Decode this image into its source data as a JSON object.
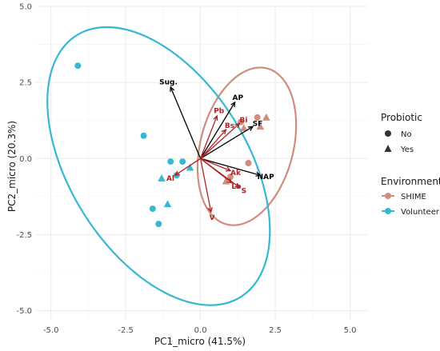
{
  "chart_data": {
    "type": "scatter",
    "xlabel": "PC1_micro (41.5%)",
    "ylabel": "PC2_micro (20.3%)",
    "xlim": [
      -5.5,
      5.6
    ],
    "ylim": [
      -5.3,
      5.0
    ],
    "x_ticks": [
      "-5.0",
      "-2.5",
      "0.0",
      "2.5",
      "5.0"
    ],
    "y_ticks": [
      "-5.0",
      "-2.5",
      "0.0",
      "2.5",
      "5.0"
    ],
    "grid": true,
    "legend_position": "right",
    "colors": {
      "SHIME": "#d08c7c",
      "Volunteer": "#36b7d2",
      "loading_black": "#000000",
      "loading_red": "#b22222"
    },
    "legend": {
      "probiotic_title": "Probiotic",
      "probiotic_items": [
        {
          "label": "No",
          "shape": "circle"
        },
        {
          "label": "Yes",
          "shape": "triangle"
        }
      ],
      "environment_title": "Environment",
      "environment_items": [
        {
          "label": "SHIME",
          "color": "#d08c7c"
        },
        {
          "label": "Volunteer",
          "color": "#36b7d2"
        }
      ]
    },
    "series": [
      {
        "name": "SHIME",
        "points": [
          {
            "x": 1.9,
            "y": 1.35,
            "probiotic": "No"
          },
          {
            "x": 1.35,
            "y": 1.2,
            "probiotic": "No"
          },
          {
            "x": 2.2,
            "y": 1.35,
            "probiotic": "Yes"
          },
          {
            "x": 2.0,
            "y": 1.05,
            "probiotic": "Yes"
          },
          {
            "x": 1.45,
            "y": 1.0,
            "probiotic": "Yes"
          },
          {
            "x": 1.6,
            "y": -0.15,
            "probiotic": "No"
          },
          {
            "x": 0.85,
            "y": -0.75,
            "probiotic": "Yes"
          },
          {
            "x": 1.0,
            "y": -0.6,
            "probiotic": "No"
          }
        ],
        "ellipse": {
          "cx": 1.55,
          "cy": 0.4,
          "rx": 2.65,
          "ry": 1.55,
          "angle_deg": 75
        }
      },
      {
        "name": "Volunteer",
        "points": [
          {
            "x": -4.1,
            "y": 3.05,
            "probiotic": "No"
          },
          {
            "x": -1.9,
            "y": 0.75,
            "probiotic": "No"
          },
          {
            "x": -1.0,
            "y": -0.1,
            "probiotic": "No"
          },
          {
            "x": -0.6,
            "y": -0.1,
            "probiotic": "No"
          },
          {
            "x": -0.35,
            "y": -0.3,
            "probiotic": "Yes"
          },
          {
            "x": -0.8,
            "y": -0.55,
            "probiotic": "No"
          },
          {
            "x": -1.3,
            "y": -0.65,
            "probiotic": "Yes"
          },
          {
            "x": -1.6,
            "y": -1.65,
            "probiotic": "No"
          },
          {
            "x": -1.1,
            "y": -1.5,
            "probiotic": "Yes"
          },
          {
            "x": -1.4,
            "y": -2.15,
            "probiotic": "No"
          }
        ],
        "ellipse": {
          "cx": -1.4,
          "cy": -0.25,
          "rx": 5.1,
          "ry": 2.95,
          "angle_deg": -57
        }
      }
    ],
    "loadings": [
      {
        "label": "Sug.",
        "x": -1.0,
        "y": 2.35,
        "color": "black"
      },
      {
        "label": "AP",
        "x": 1.15,
        "y": 1.85,
        "color": "black"
      },
      {
        "label": "SF",
        "x": 1.75,
        "y": 1.05,
        "color": "black"
      },
      {
        "label": "NAP",
        "x": 2.0,
        "y": -0.55,
        "color": "black"
      },
      {
        "label": "Pb",
        "x": 0.55,
        "y": 1.4,
        "color": "red"
      },
      {
        "label": "Bs",
        "x": 0.85,
        "y": 0.95,
        "color": "red"
      },
      {
        "label": "Bi",
        "x": 1.3,
        "y": 1.15,
        "color": "red"
      },
      {
        "label": "Ak",
        "x": 1.0,
        "y": -0.4,
        "color": "red"
      },
      {
        "label": "Lb",
        "x": 1.05,
        "y": -0.8,
        "color": "red"
      },
      {
        "label": "S",
        "x": 1.3,
        "y": -0.95,
        "color": "red"
      },
      {
        "label": "Al",
        "x": -0.85,
        "y": -0.55,
        "color": "red"
      },
      {
        "label": "V",
        "x": 0.35,
        "y": -1.75,
        "color": "red"
      }
    ]
  }
}
